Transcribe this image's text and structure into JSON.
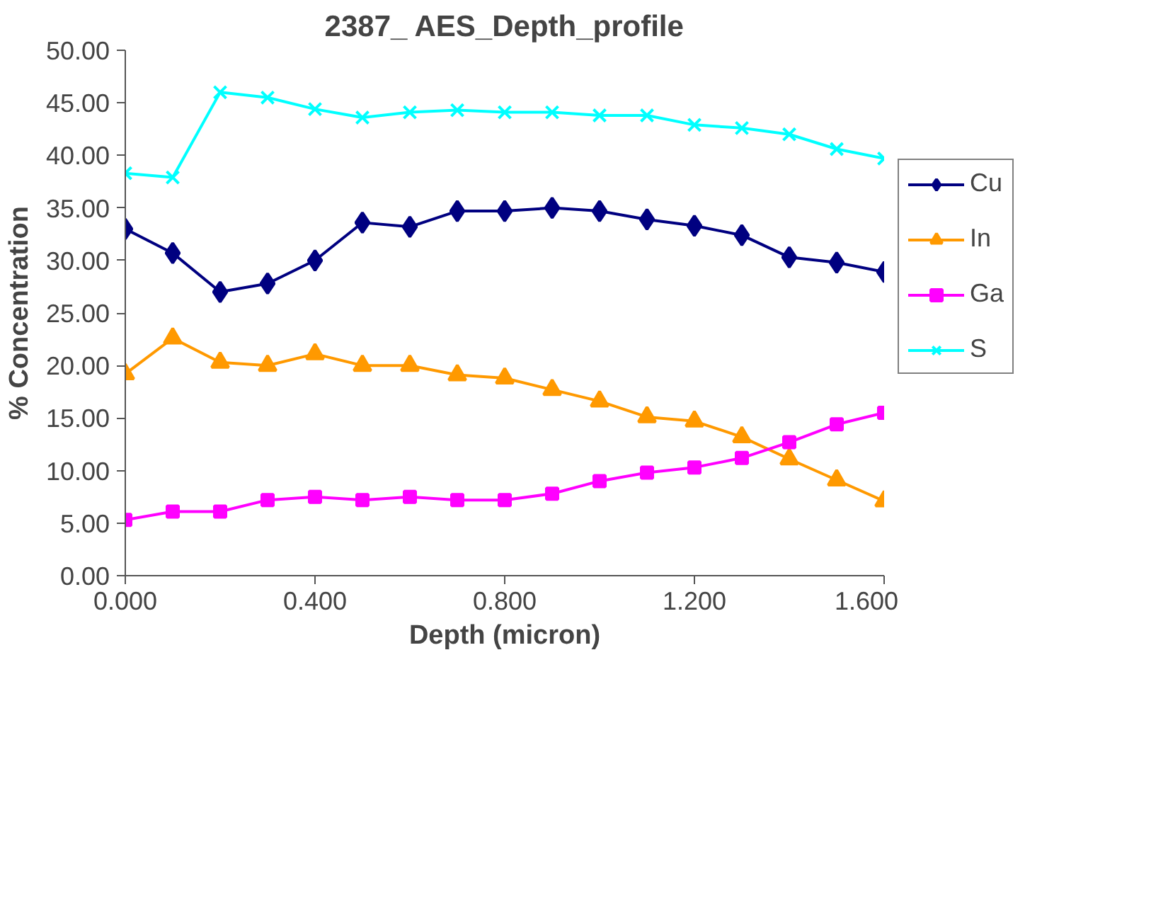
{
  "chart_data": {
    "type": "line",
    "title": "2387_ AES_Depth_profile",
    "xlabel": "Depth (micron)",
    "ylabel": "% Concentration",
    "x": [
      0,
      0.1,
      0.2,
      0.3,
      0.4,
      0.5,
      0.6,
      0.7,
      0.8,
      0.9,
      1.0,
      1.1,
      1.2,
      1.3,
      1.4,
      1.5,
      1.6
    ],
    "series": [
      {
        "name": "Cu",
        "color": "#000080",
        "marker": "diamond",
        "values": [
          33.0,
          30.7,
          27.0,
          27.8,
          30.0,
          33.6,
          33.2,
          34.7,
          34.7,
          35.0,
          34.7,
          33.9,
          33.3,
          32.4,
          30.3,
          29.8,
          28.9
        ]
      },
      {
        "name": "In",
        "color": "#ff9900",
        "marker": "triangle",
        "values": [
          19.2,
          22.6,
          20.3,
          20.0,
          21.1,
          20.0,
          20.0,
          19.1,
          18.8,
          17.7,
          16.6,
          15.1,
          14.7,
          13.2,
          11.1,
          9.1,
          7.1
        ]
      },
      {
        "name": "Ga",
        "color": "#ff00ff",
        "marker": "square",
        "values": [
          5.3,
          6.1,
          6.1,
          7.2,
          7.5,
          7.2,
          7.5,
          7.2,
          7.2,
          7.8,
          9.0,
          9.8,
          10.3,
          11.2,
          12.7,
          14.4,
          15.5
        ]
      },
      {
        "name": "S",
        "color": "#00ffff",
        "marker": "x",
        "values": [
          38.3,
          37.9,
          46.0,
          45.5,
          44.4,
          43.6,
          44.1,
          44.3,
          44.1,
          44.1,
          43.8,
          43.8,
          42.9,
          42.6,
          42.0,
          40.6,
          39.7
        ]
      }
    ],
    "xlim": [
      0,
      1.6
    ],
    "ylim": [
      0,
      50
    ],
    "xticks": [
      {
        "value": 0,
        "label": "0.000"
      },
      {
        "value": 0.4,
        "label": "0.400"
      },
      {
        "value": 0.8,
        "label": "0.800"
      },
      {
        "value": 1.2,
        "label": "1.200"
      },
      {
        "value": 1.6,
        "label": "1.600"
      }
    ],
    "yticks": [
      {
        "value": 0,
        "label": "0.00"
      },
      {
        "value": 5,
        "label": "5.00"
      },
      {
        "value": 10,
        "label": "10.00"
      },
      {
        "value": 15,
        "label": "15.00"
      },
      {
        "value": 20,
        "label": "20.00"
      },
      {
        "value": 25,
        "label": "25.00"
      },
      {
        "value": 30,
        "label": "30.00"
      },
      {
        "value": 35,
        "label": "35.00"
      },
      {
        "value": 40,
        "label": "40.00"
      },
      {
        "value": 45,
        "label": "45.00"
      },
      {
        "value": 50,
        "label": "50.00"
      }
    ],
    "grid": false,
    "legend": "right",
    "line_style": "solid"
  }
}
